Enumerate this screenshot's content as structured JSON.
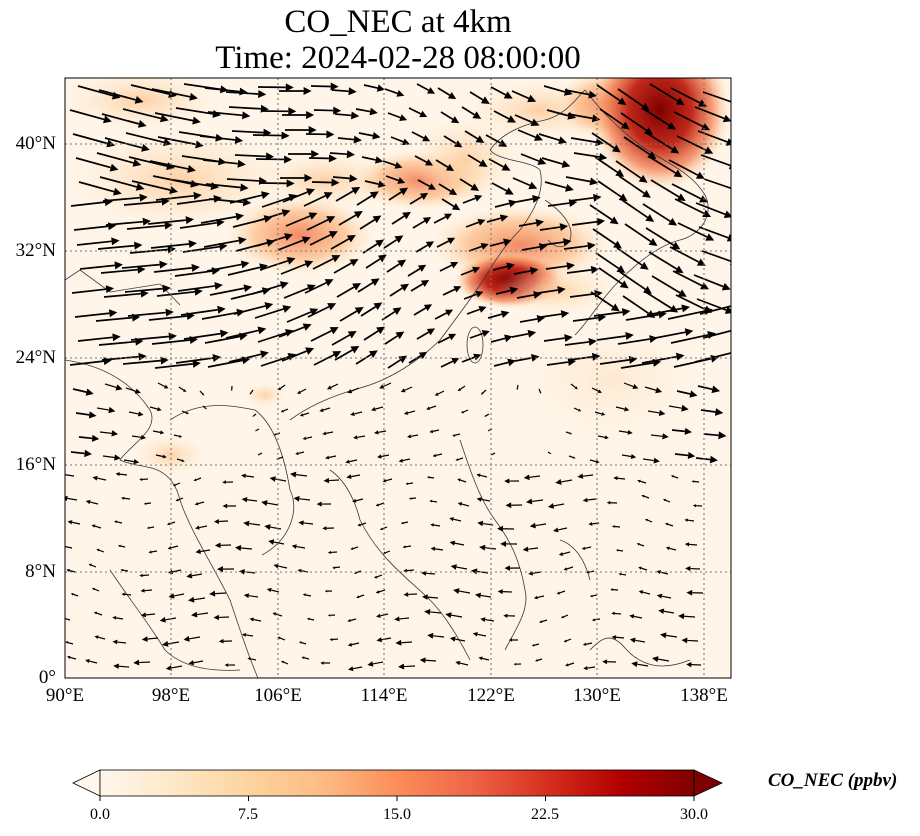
{
  "figure": {
    "title_line1": "CO_NEC at 4km",
    "title_line2": "Time: 2024-02-28 08:00:00"
  },
  "map": {
    "lon_ticks": [
      "90°E",
      "98°E",
      "106°E",
      "114°E",
      "122°E",
      "130°E",
      "138°E"
    ],
    "lat_ticks": [
      "0°",
      "8°N",
      "16°N",
      "24°N",
      "32°N",
      "40°N"
    ],
    "gridlines": true,
    "background_color": "#fff5e8",
    "high_concentration_colors": [
      "#fdd49e",
      "#fc8d59",
      "#d7301f",
      "#7f0000"
    ]
  },
  "colorbar": {
    "label": "CO_NEC (ppbv)",
    "ticks": [
      "0.0",
      "7.5",
      "15.0",
      "22.5",
      "30.0"
    ],
    "min_value": 0.0,
    "max_value": 30.0,
    "colormap_stops": [
      "#fff7ec",
      "#fee8c8",
      "#fdd49e",
      "#fdbb84",
      "#fc8d59",
      "#ef6548",
      "#d7301f",
      "#b30000",
      "#7f0000"
    ],
    "extend": "both"
  }
}
